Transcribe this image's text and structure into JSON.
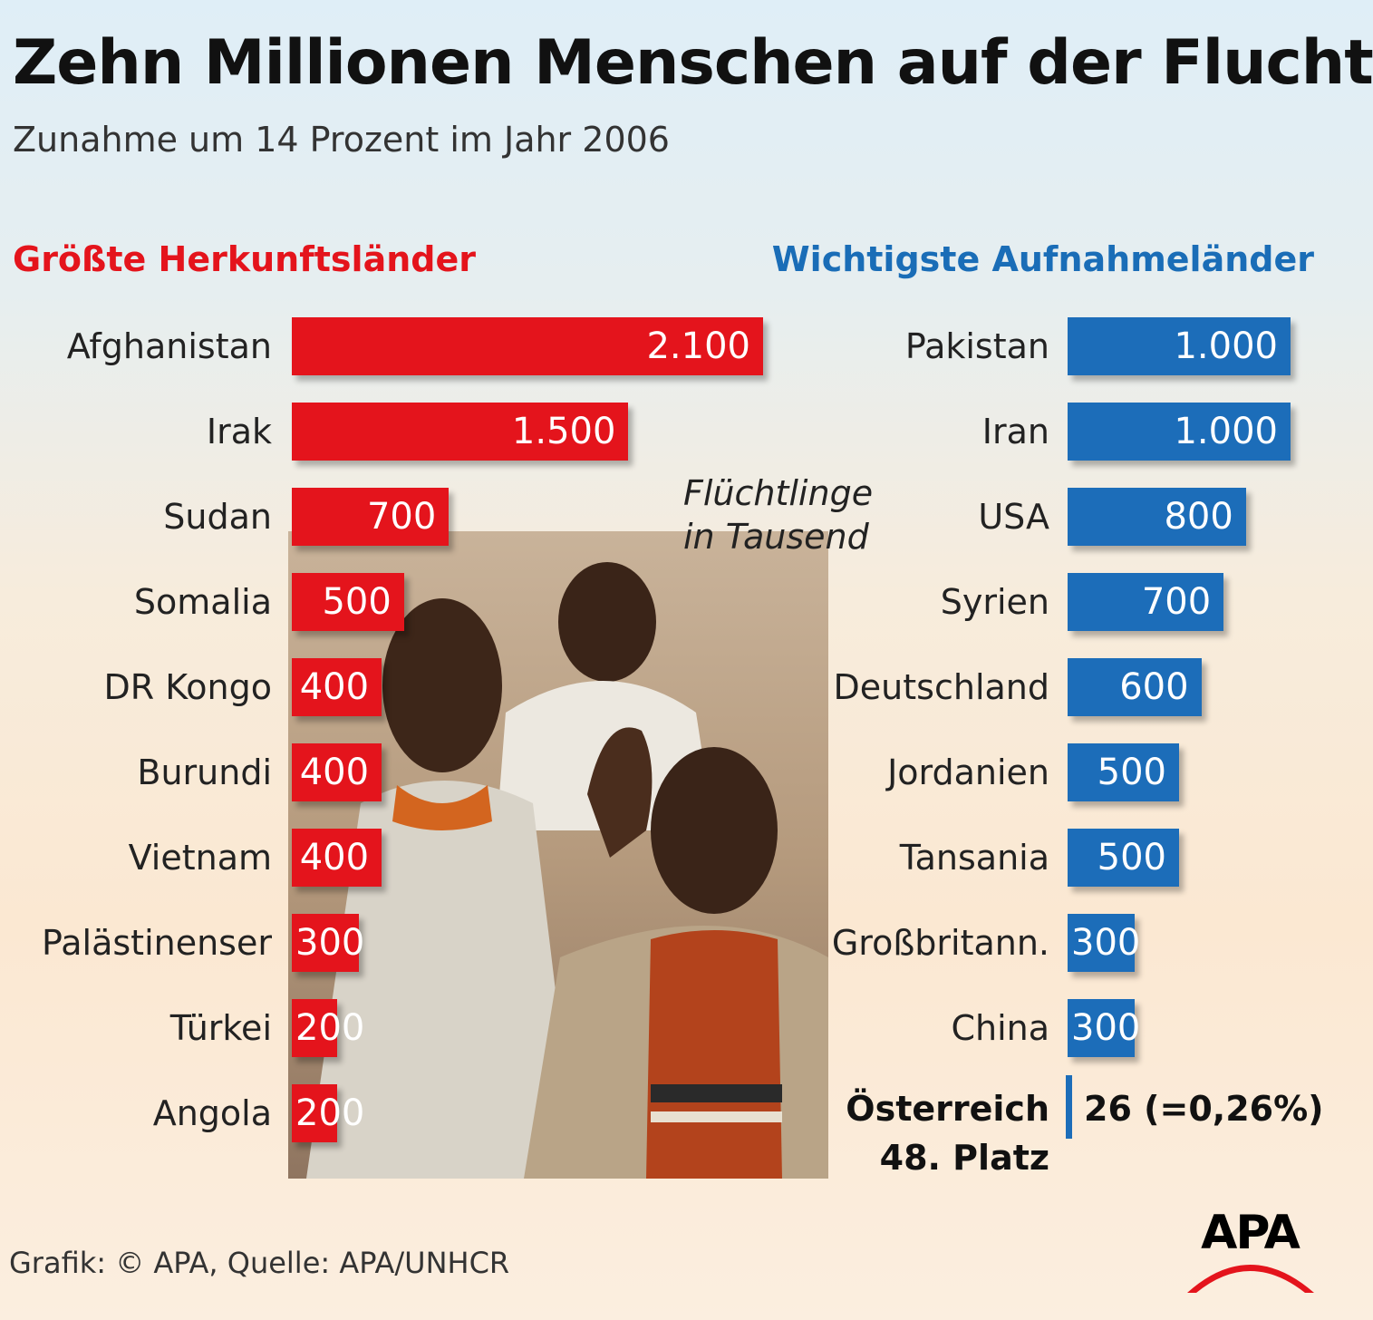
{
  "title": "Zehn Millionen Menschen auf der Flucht",
  "subtitle": "Zunahme um 14 Prozent im Jahr 2006",
  "source": "Grafik: © APA, Quelle: APA/UNHCR",
  "logo_text": "APA",
  "colors": {
    "left_bars": "#e4141c",
    "right_bars": "#1c6db9"
  },
  "chart_data": [
    {
      "type": "bar",
      "orientation": "horizontal",
      "title": "Größte Herkunftsländer",
      "categories": [
        "Afghanistan",
        "Irak",
        "Sudan",
        "Somalia",
        "DR Kongo",
        "Burundi",
        "Vietnam",
        "Palästinenser",
        "Türkei",
        "Angola"
      ],
      "values": [
        2100,
        1500,
        700,
        500,
        400,
        400,
        400,
        300,
        200,
        200
      ],
      "value_labels": [
        "2.100",
        "1.500",
        "700",
        "500",
        "400",
        "400",
        "400",
        "300",
        "200",
        "200"
      ],
      "color": "#e4141c"
    },
    {
      "type": "bar",
      "orientation": "horizontal",
      "title": "Wichtigste Aufnahmeländer",
      "categories": [
        "Pakistan",
        "Iran",
        "USA",
        "Syrien",
        "Deutschland",
        "Jordanien",
        "Tansania",
        "Großbritann.",
        "China"
      ],
      "values": [
        1000,
        1000,
        800,
        700,
        600,
        500,
        500,
        300,
        300
      ],
      "value_labels": [
        "1.000",
        "1.000",
        "800",
        "700",
        "600",
        "500",
        "500",
        "300",
        "300"
      ],
      "color": "#1c6db9",
      "unit_note": [
        "Flüchtlinge",
        "in Tausend"
      ],
      "extra": {
        "label_lines": [
          "Österreich",
          "48. Platz"
        ],
        "value": 26,
        "value_label": "26 (=0,26%)"
      }
    }
  ]
}
